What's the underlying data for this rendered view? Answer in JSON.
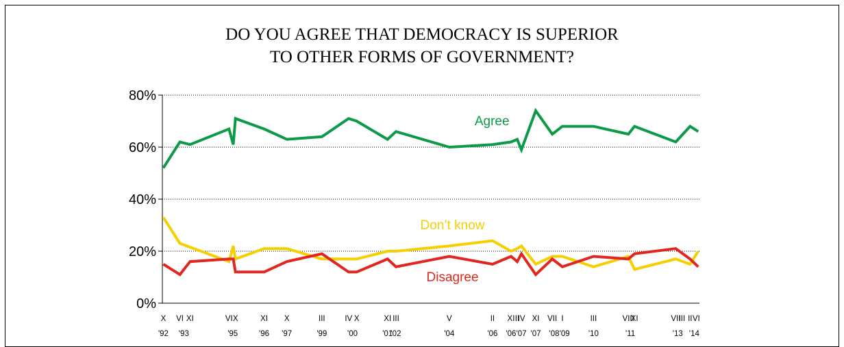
{
  "title_lines": [
    "DO YOU AGREE THAT DEMOCRACY IS SUPERIOR",
    "TO OTHER FORMS OF GOVERNMENT?"
  ],
  "colors": {
    "agree": "#0c9a48",
    "dont_know": "#f5cf00",
    "disagree": "#e0261f",
    "axis": "#000000",
    "grid": "#000000"
  },
  "chart_data": {
    "type": "line",
    "title": "DO YOU AGREE THAT DEMOCRACY IS SUPERIOR TO OTHER FORMS OF GOVERNMENT?",
    "xlabel": "",
    "ylabel": "",
    "ylim": [
      0,
      80
    ],
    "y_ticks": [
      "0%",
      "20%",
      "40%",
      "60%",
      "80%"
    ],
    "y_tick_values": [
      0,
      20,
      40,
      60,
      80
    ],
    "grid": "horizontal dotted lines at 20%, 40%, 60%",
    "x_range": [
      1992.75,
      2014.5
    ],
    "x_month_labels": [
      {
        "t": 1992.79,
        "label": "X"
      },
      {
        "t": 1993.46,
        "label": "VI"
      },
      {
        "t": 1993.87,
        "label": "XI"
      },
      {
        "t": 1995.45,
        "label": "VI"
      },
      {
        "t": 1995.71,
        "label": "X"
      },
      {
        "t": 1996.87,
        "label": "XI"
      },
      {
        "t": 1997.79,
        "label": "X"
      },
      {
        "t": 1999.21,
        "label": "III"
      },
      {
        "t": 2000.29,
        "label": "IV"
      },
      {
        "t": 2000.62,
        "label": "X"
      },
      {
        "t": 2001.87,
        "label": "XI"
      },
      {
        "t": 2002.21,
        "label": "III"
      },
      {
        "t": 2004.37,
        "label": "V"
      },
      {
        "t": 2006.12,
        "label": "II"
      },
      {
        "t": 2006.87,
        "label": "XI"
      },
      {
        "t": 2007.12,
        "label": "II"
      },
      {
        "t": 2007.29,
        "label": "IV"
      },
      {
        "t": 2007.87,
        "label": "XI"
      },
      {
        "t": 2008.54,
        "label": "VII"
      },
      {
        "t": 2008.95,
        "label": "I"
      },
      {
        "t": 2010.21,
        "label": "III"
      },
      {
        "t": 2011.62,
        "label": "VIII"
      },
      {
        "t": 2011.87,
        "label": "XI"
      },
      {
        "t": 2013.54,
        "label": "VII"
      },
      {
        "t": 2013.79,
        "label": "III"
      },
      {
        "t": 2014.12,
        "label": "II"
      },
      {
        "t": 2014.37,
        "label": "VI"
      }
    ],
    "x_year_labels": [
      {
        "t": 1992.79,
        "label": "'92"
      },
      {
        "t": 1993.62,
        "label": "'93"
      },
      {
        "t": 1995.6,
        "label": "'95"
      },
      {
        "t": 1996.87,
        "label": "'96"
      },
      {
        "t": 1997.79,
        "label": "'97"
      },
      {
        "t": 1999.21,
        "label": "'99"
      },
      {
        "t": 2000.45,
        "label": "'00"
      },
      {
        "t": 2001.87,
        "label": "'01"
      },
      {
        "t": 2002.21,
        "label": "'02"
      },
      {
        "t": 2004.37,
        "label": "'04"
      },
      {
        "t": 2006.12,
        "label": "'06"
      },
      {
        "t": 2006.87,
        "label": "'06"
      },
      {
        "t": 2007.29,
        "label": "'07"
      },
      {
        "t": 2007.87,
        "label": "'07"
      },
      {
        "t": 2008.62,
        "label": "'08"
      },
      {
        "t": 2009.04,
        "label": "'09"
      },
      {
        "t": 2010.21,
        "label": "'10"
      },
      {
        "t": 2011.7,
        "label": "'11"
      },
      {
        "t": 2013.62,
        "label": "'13"
      },
      {
        "t": 2014.29,
        "label": "'14"
      }
    ],
    "series": [
      {
        "name": "Agree",
        "color_key": "agree",
        "points": [
          [
            1992.79,
            52
          ],
          [
            1993.46,
            62
          ],
          [
            1993.87,
            61
          ],
          [
            1995.45,
            67
          ],
          [
            1995.62,
            61
          ],
          [
            1995.71,
            71
          ],
          [
            1996.87,
            67
          ],
          [
            1997.79,
            63
          ],
          [
            1999.21,
            64
          ],
          [
            2000.29,
            71
          ],
          [
            2000.62,
            70
          ],
          [
            2001.87,
            63
          ],
          [
            2002.21,
            66
          ],
          [
            2004.37,
            60
          ],
          [
            2006.12,
            61
          ],
          [
            2006.87,
            62
          ],
          [
            2007.12,
            63
          ],
          [
            2007.29,
            59
          ],
          [
            2007.87,
            74
          ],
          [
            2008.54,
            65
          ],
          [
            2008.95,
            68
          ],
          [
            2010.21,
            68
          ],
          [
            2011.62,
            65
          ],
          [
            2011.87,
            68
          ],
          [
            2013.54,
            62
          ],
          [
            2014.12,
            68
          ],
          [
            2014.45,
            66
          ]
        ]
      },
      {
        "name": "Don't know",
        "color_key": "dont_know",
        "points": [
          [
            1992.79,
            33
          ],
          [
            1993.46,
            23
          ],
          [
            1995.45,
            16
          ],
          [
            1995.62,
            22
          ],
          [
            1995.71,
            17
          ],
          [
            1996.87,
            21
          ],
          [
            1997.79,
            21
          ],
          [
            1999.21,
            17
          ],
          [
            2000.29,
            17
          ],
          [
            2000.62,
            17
          ],
          [
            2001.87,
            20
          ],
          [
            2002.21,
            20
          ],
          [
            2004.37,
            22
          ],
          [
            2006.12,
            24
          ],
          [
            2006.87,
            20
          ],
          [
            2007.12,
            21
          ],
          [
            2007.29,
            22
          ],
          [
            2007.87,
            15
          ],
          [
            2008.54,
            18
          ],
          [
            2008.95,
            18
          ],
          [
            2010.21,
            14
          ],
          [
            2011.62,
            18
          ],
          [
            2011.87,
            13
          ],
          [
            2013.54,
            17
          ],
          [
            2014.12,
            15
          ],
          [
            2014.45,
            20
          ]
        ]
      },
      {
        "name": "Disagree",
        "color_key": "disagree",
        "points": [
          [
            1992.79,
            15
          ],
          [
            1993.46,
            11
          ],
          [
            1993.87,
            16
          ],
          [
            1995.45,
            17
          ],
          [
            1995.62,
            17
          ],
          [
            1995.71,
            12
          ],
          [
            1996.87,
            12
          ],
          [
            1997.79,
            16
          ],
          [
            1999.21,
            19
          ],
          [
            2000.29,
            12
          ],
          [
            2000.62,
            12
          ],
          [
            2001.87,
            17
          ],
          [
            2002.21,
            14
          ],
          [
            2004.37,
            18
          ],
          [
            2006.12,
            15
          ],
          [
            2006.87,
            18
          ],
          [
            2007.12,
            16
          ],
          [
            2007.29,
            19
          ],
          [
            2007.87,
            11
          ],
          [
            2008.54,
            17
          ],
          [
            2008.95,
            14
          ],
          [
            2010.21,
            18
          ],
          [
            2011.62,
            17
          ],
          [
            2011.87,
            19
          ],
          [
            2013.54,
            21
          ],
          [
            2014.12,
            17
          ],
          [
            2014.45,
            14
          ]
        ]
      }
    ],
    "annotations": [
      {
        "text": "Agree",
        "series": "Agree",
        "color_key": "agree",
        "t": 2006.1,
        "y": 70
      },
      {
        "text": "Don’t know",
        "series": "Don't know",
        "color_key": "dont_know",
        "t": 2004.5,
        "y": 30
      },
      {
        "text": "Disagree",
        "series": "Disagree",
        "color_key": "disagree",
        "t": 2004.5,
        "y": 10
      }
    ]
  }
}
